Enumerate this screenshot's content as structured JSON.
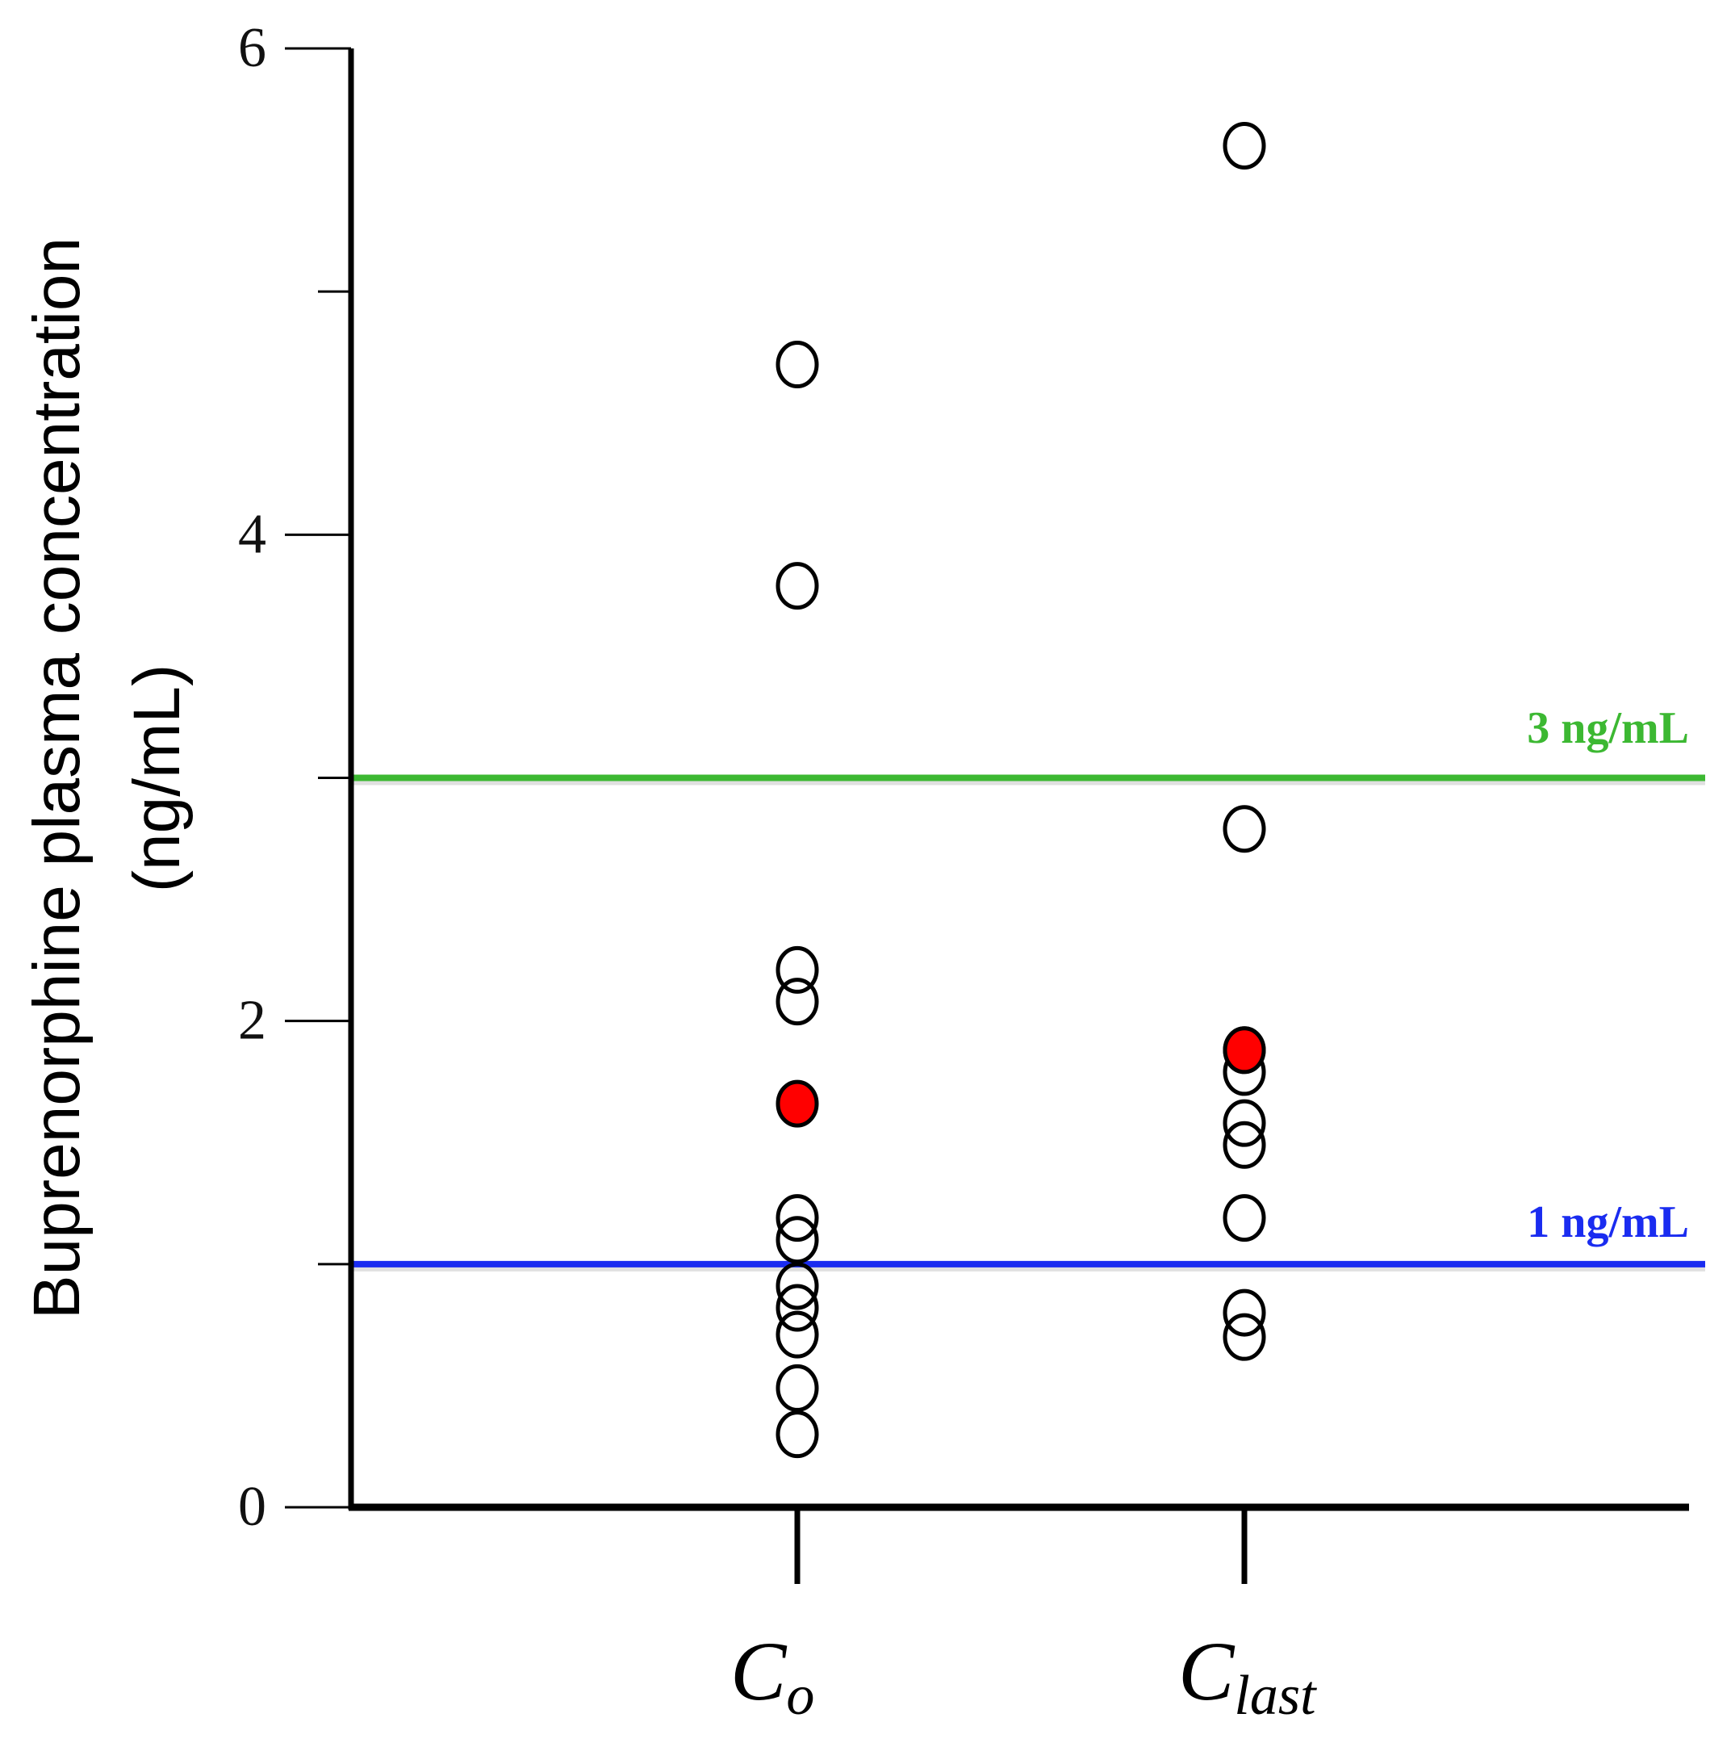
{
  "chart_data": {
    "type": "scatter",
    "title": "",
    "ylabel_lines": [
      "Buprenorphine plasma concentration",
      "(ng/mL)"
    ],
    "xlabel": "",
    "categories": [
      {
        "main": "C",
        "sub": "o"
      },
      {
        "main": "C",
        "sub": "last"
      }
    ],
    "ylim": [
      0,
      6
    ],
    "yticks_major": [
      0,
      2,
      4,
      6
    ],
    "ytick_labels": [
      "0",
      "2",
      "4",
      "6"
    ],
    "yticks_minor": [
      1,
      3,
      5
    ],
    "grid": false,
    "series": [
      {
        "category": "C_o",
        "open_values": [
          4.7,
          3.79,
          2.21,
          2.08,
          1.19,
          1.1,
          0.91,
          0.82,
          0.71,
          0.49,
          0.3
        ],
        "filled_values": [
          1.66
        ]
      },
      {
        "category": "C_last",
        "open_values": [
          5.6,
          2.79,
          1.88,
          1.79,
          1.58,
          1.49,
          1.19,
          0.8,
          0.7
        ],
        "filled_values": [
          1.88
        ]
      }
    ],
    "reference_lines": [
      {
        "value": 3,
        "label": "3 ng/mL",
        "color": "#3cb832"
      },
      {
        "value": 1,
        "label": "1 ng/mL",
        "color": "#1a2cf0"
      }
    ],
    "colors": {
      "filled_marker": "#ff0000",
      "open_marker": "#000000",
      "axis": "#000000"
    }
  }
}
